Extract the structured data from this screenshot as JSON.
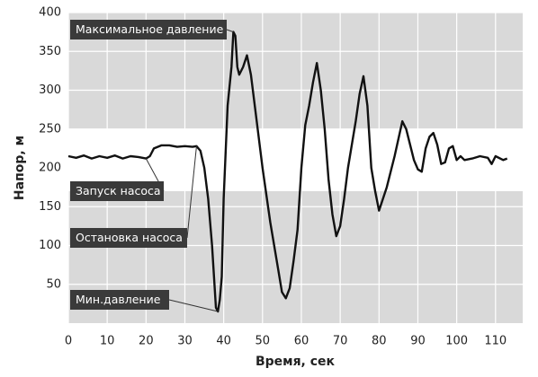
{
  "chart_data": {
    "type": "line",
    "x_label": "Время, сек",
    "y_label": "Напор, м",
    "color": "#111111",
    "x": [
      0,
      2,
      4,
      6,
      8,
      10,
      12,
      14,
      16,
      18,
      20,
      21,
      22,
      24,
      26,
      28,
      30,
      32,
      33,
      34,
      35,
      36,
      37,
      38,
      38.5,
      39,
      39.5,
      40,
      41,
      42,
      42.5,
      43,
      43.5,
      44,
      45,
      46,
      47,
      48,
      50,
      52,
      54,
      55,
      56,
      57,
      58,
      59,
      60,
      61,
      62,
      63,
      64,
      65,
      66,
      67,
      68,
      69,
      70,
      71,
      72,
      74,
      75,
      76,
      77,
      78,
      79,
      80,
      81,
      82,
      84,
      86,
      87,
      88,
      89,
      90,
      91,
      92,
      93,
      94,
      95,
      96,
      97,
      98,
      99,
      100,
      101,
      102,
      104,
      106,
      108,
      109,
      110,
      112,
      113
    ],
    "values": [
      215,
      213,
      216,
      212,
      215,
      213,
      216,
      212,
      215,
      214,
      212,
      215,
      225,
      229,
      229,
      227,
      228,
      227,
      228,
      222,
      200,
      160,
      100,
      20,
      15,
      30,
      60,
      160,
      280,
      330,
      375,
      370,
      330,
      320,
      330,
      345,
      320,
      280,
      200,
      130,
      70,
      40,
      32,
      45,
      80,
      120,
      200,
      255,
      280,
      310,
      335,
      300,
      250,
      185,
      140,
      112,
      125,
      160,
      200,
      260,
      295,
      318,
      280,
      200,
      170,
      145,
      160,
      175,
      215,
      260,
      250,
      230,
      210,
      198,
      195,
      225,
      240,
      245,
      230,
      205,
      207,
      225,
      228,
      210,
      215,
      210,
      212,
      215,
      213,
      205,
      215,
      210,
      212
    ],
    "xlim": [
      0,
      117
    ],
    "ylim": [
      0,
      400
    ],
    "xticks": [
      0,
      10,
      20,
      30,
      40,
      50,
      60,
      70,
      80,
      90,
      100,
      110
    ],
    "yticks": [
      50,
      100,
      150,
      200,
      250,
      300,
      350,
      400
    ],
    "grid": true,
    "shaded_ranges": [
      {
        "from": 0,
        "to": 170
      },
      {
        "from": 250,
        "to": 400
      }
    ],
    "annotations": [
      {
        "text": "Максимальное давление",
        "x": 42.5,
        "y": 375
      },
      {
        "text": "Запуск насоса",
        "x": 20,
        "y": 212
      },
      {
        "text": "Остановка насоса",
        "x": 33,
        "y": 228
      },
      {
        "text": "Мин.давление",
        "x": 38.5,
        "y": 15
      }
    ]
  }
}
